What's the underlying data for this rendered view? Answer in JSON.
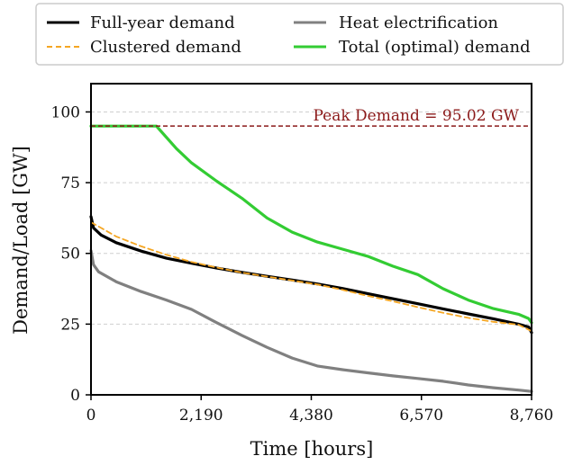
{
  "chart_data": {
    "type": "line",
    "xlabel": "Time [hours]",
    "ylabel": "Demand/Load [GW]",
    "xlim": [
      0,
      8760
    ],
    "ylim": [
      0,
      110
    ],
    "xticks": [
      0,
      2190,
      4380,
      6570,
      8760
    ],
    "xtick_labels": [
      "0",
      "2,190",
      "4,380",
      "6,570",
      "8,760"
    ],
    "yticks": [
      0,
      25,
      50,
      75,
      100
    ],
    "ytick_labels": [
      "0",
      "25",
      "50",
      "75",
      "100"
    ],
    "grid": "horizontal, dashed",
    "legend_placement": "top, above plot",
    "legend": [
      {
        "label": "Full-year demand",
        "color": "#000000",
        "style": "solid"
      },
      {
        "label": "Heat electrification",
        "color": "#808080",
        "style": "solid"
      },
      {
        "label": "Clustered demand",
        "color": "#f5a623",
        "style": "dashed"
      },
      {
        "label": "Total (optimal) demand",
        "color": "#33cc33",
        "style": "solid"
      }
    ],
    "series": [
      {
        "name": "Full-year demand",
        "color": "#000000",
        "style": "solid",
        "x": [
          0,
          50,
          200,
          500,
          1000,
          1500,
          2000,
          2500,
          3000,
          3500,
          4000,
          4500,
          5000,
          5500,
          6000,
          6500,
          7000,
          7500,
          8000,
          8500,
          8700,
          8760
        ],
        "y": [
          63,
          59,
          56.5,
          53.8,
          50.8,
          48.3,
          46.5,
          44.8,
          43.3,
          41.9,
          40.6,
          39.2,
          37.6,
          35.8,
          34,
          32.2,
          30.4,
          28.6,
          26.9,
          25,
          24,
          22
        ]
      },
      {
        "name": "Clustered demand",
        "color": "#f5a623",
        "style": "dashed",
        "x": [
          0,
          200,
          500,
          1000,
          1500,
          2000,
          2500,
          3000,
          3500,
          4000,
          4500,
          5000,
          5500,
          6000,
          6500,
          7000,
          7500,
          8000,
          8500,
          8760
        ],
        "y": [
          61,
          59,
          56,
          52.5,
          49.5,
          47,
          45,
          43.2,
          41.8,
          40.4,
          39,
          37.1,
          35,
          33.1,
          31,
          29,
          27.2,
          25.8,
          24.8,
          22.5
        ]
      },
      {
        "name": "Heat electrification",
        "color": "#808080",
        "style": "solid",
        "x": [
          0,
          50,
          150,
          500,
          1000,
          1500,
          2000,
          2500,
          3000,
          3500,
          4000,
          4500,
          5000,
          5500,
          6000,
          6500,
          7000,
          7500,
          8000,
          8500,
          8760
        ],
        "y": [
          51,
          46,
          43.5,
          40,
          36.5,
          33.5,
          30.2,
          25.5,
          21,
          16.8,
          13,
          10.2,
          8.9,
          7.8,
          6.7,
          5.8,
          4.8,
          3.5,
          2.5,
          1.7,
          1.2
        ]
      },
      {
        "name": "Total (optimal) demand",
        "color": "#33cc33",
        "style": "solid",
        "x": [
          0,
          1300,
          1400,
          1700,
          2000,
          2500,
          3000,
          3500,
          4000,
          4500,
          5000,
          5500,
          6000,
          6500,
          7000,
          7500,
          8000,
          8500,
          8700,
          8760
        ],
        "y": [
          95,
          95,
          93,
          87,
          82,
          75.5,
          69.5,
          62.5,
          57.5,
          54,
          51.5,
          49,
          45.5,
          42.5,
          37.5,
          33.5,
          30.5,
          28.5,
          27,
          25.5
        ]
      }
    ],
    "annotations": [
      {
        "type": "hline",
        "y": 95.02,
        "color": "#8b1a1a",
        "style": "dashed",
        "text": "Peak Demand = 95.02 GW"
      }
    ]
  }
}
